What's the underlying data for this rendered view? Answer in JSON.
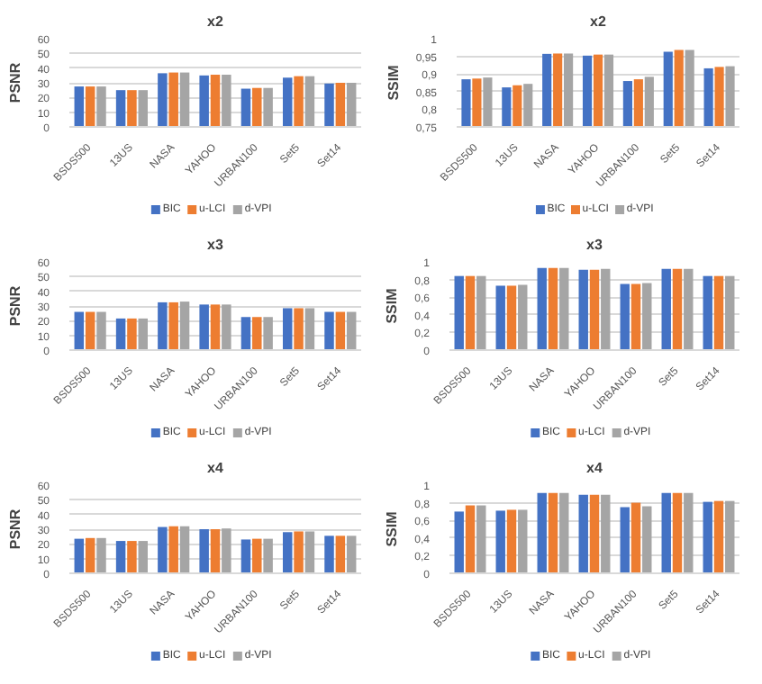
{
  "chart_data": [
    {
      "type": "bar",
      "title": "x2",
      "ylabel": "PSNR",
      "categories": [
        "BSDS500",
        "13US",
        "NASA",
        "YAHOO",
        "URBAN100",
        "Set5",
        "Set14"
      ],
      "ylim": [
        0,
        60
      ],
      "yticks": [
        0,
        10,
        20,
        30,
        40,
        50,
        60
      ],
      "grid": "y",
      "legend": "bottom",
      "series": [
        {
          "name": "BIC",
          "color": "#4472c4",
          "values": [
            27.5,
            25,
            36.5,
            35,
            26,
            33.5,
            29.5
          ]
        },
        {
          "name": "u-LCI",
          "color": "#ed7d31",
          "values": [
            27.5,
            25,
            37,
            35.5,
            26.5,
            34.5,
            30
          ]
        },
        {
          "name": "d-VPI",
          "color": "#a5a5a5",
          "values": [
            27.5,
            25,
            37,
            35.5,
            26.5,
            34.5,
            30
          ]
        }
      ]
    },
    {
      "type": "bar",
      "title": "x2",
      "ylabel": "SSIM",
      "categories": [
        "BSDS500",
        "13US",
        "NASA",
        "YAHOO",
        "URBAN100",
        "Set5",
        "Set14"
      ],
      "ylim": [
        0.75,
        1
      ],
      "yticks": [
        {
          "value": 0.75,
          "label": "0,75"
        },
        {
          "value": 0.8,
          "label": "0,8"
        },
        {
          "value": 0.85,
          "label": "0,85"
        },
        {
          "value": 0.9,
          "label": "0,9"
        },
        {
          "value": 0.95,
          "label": "0,95"
        },
        1
      ],
      "grid": "y",
      "legend": "bottom",
      "series": [
        {
          "name": "BIC",
          "color": "#4472c4",
          "values": [
            0.885,
            0.862,
            0.957,
            0.952,
            0.88,
            0.963,
            0.916
          ]
        },
        {
          "name": "u-LCI",
          "color": "#ed7d31",
          "values": [
            0.887,
            0.868,
            0.958,
            0.955,
            0.885,
            0.968,
            0.92
          ]
        },
        {
          "name": "d-VPI",
          "color": "#a5a5a5",
          "values": [
            0.89,
            0.872,
            0.958,
            0.955,
            0.892,
            0.968,
            0.922
          ]
        }
      ]
    },
    {
      "type": "bar",
      "title": "x3",
      "ylabel": "PSNR",
      "categories": [
        "BSDS500",
        "13US",
        "NASA",
        "YAHOO",
        "URBAN100",
        "Set5",
        "Set14"
      ],
      "ylim": [
        0,
        60
      ],
      "yticks": [
        0,
        10,
        20,
        30,
        40,
        50,
        60
      ],
      "grid": "y",
      "legend": "bottom",
      "series": [
        {
          "name": "BIC",
          "color": "#4472c4",
          "values": [
            26,
            21.5,
            32.5,
            31,
            22.5,
            28.5,
            26
          ]
        },
        {
          "name": "u-LCI",
          "color": "#ed7d31",
          "values": [
            26,
            21.5,
            32.5,
            31,
            22.5,
            28.5,
            26
          ]
        },
        {
          "name": "d-VPI",
          "color": "#a5a5a5",
          "values": [
            26,
            21.5,
            33,
            31,
            22.5,
            28.5,
            26
          ]
        }
      ]
    },
    {
      "type": "bar",
      "title": "x3",
      "ylabel": "SSIM",
      "categories": [
        "BSDS500",
        "13US",
        "NASA",
        "YAHOO",
        "URBAN100",
        "Set5",
        "Set14"
      ],
      "ylim": [
        0,
        1
      ],
      "yticks": [
        0,
        {
          "value": 0.2,
          "label": "0,2"
        },
        {
          "value": 0.4,
          "label": "0,4"
        },
        {
          "value": 0.6,
          "label": "0,6"
        },
        {
          "value": 0.8,
          "label": "0,8"
        },
        1
      ],
      "grid": "y",
      "legend": "bottom",
      "series": [
        {
          "name": "BIC",
          "color": "#4472c4",
          "values": [
            0.84,
            0.73,
            0.93,
            0.91,
            0.75,
            0.92,
            0.84
          ]
        },
        {
          "name": "u-LCI",
          "color": "#ed7d31",
          "values": [
            0.84,
            0.73,
            0.93,
            0.91,
            0.75,
            0.92,
            0.84
          ]
        },
        {
          "name": "d-VPI",
          "color": "#a5a5a5",
          "values": [
            0.84,
            0.74,
            0.93,
            0.92,
            0.76,
            0.92,
            0.84
          ]
        }
      ]
    },
    {
      "type": "bar",
      "title": "x4",
      "ylabel": "PSNR",
      "categories": [
        "BSDS500",
        "13US",
        "NASA",
        "YAHOO",
        "URBAN100",
        "Set5",
        "Set14"
      ],
      "ylim": [
        0,
        60
      ],
      "yticks": [
        0,
        10,
        20,
        30,
        40,
        50,
        60
      ],
      "grid": "y",
      "legend": "bottom",
      "series": [
        {
          "name": "BIC",
          "color": "#4472c4",
          "values": [
            23.5,
            22,
            31.5,
            30,
            23,
            28,
            25.5
          ]
        },
        {
          "name": "u-LCI",
          "color": "#ed7d31",
          "values": [
            24,
            22,
            32,
            30,
            23.5,
            28.5,
            25.5
          ]
        },
        {
          "name": "d-VPI",
          "color": "#a5a5a5",
          "values": [
            24,
            22,
            32,
            30.5,
            23.5,
            28.5,
            25.5
          ]
        }
      ]
    },
    {
      "type": "bar",
      "title": "x4",
      "ylabel": "SSIM",
      "categories": [
        "BSDS500",
        "13US",
        "NASA",
        "YAHOO",
        "URBAN100",
        "Set5",
        "Set14"
      ],
      "ylim": [
        0,
        1
      ],
      "yticks": [
        0,
        {
          "value": 0.2,
          "label": "0,2"
        },
        {
          "value": 0.4,
          "label": "0,4"
        },
        {
          "value": 0.6,
          "label": "0,6"
        },
        {
          "value": 0.8,
          "label": "0,8"
        },
        1
      ],
      "grid": "y",
      "legend": "bottom",
      "series": [
        {
          "name": "BIC",
          "color": "#4472c4",
          "values": [
            0.7,
            0.71,
            0.91,
            0.89,
            0.75,
            0.91,
            0.81
          ]
        },
        {
          "name": "u-LCI",
          "color": "#ed7d31",
          "values": [
            0.77,
            0.72,
            0.91,
            0.89,
            0.8,
            0.91,
            0.82
          ]
        },
        {
          "name": "d-VPI",
          "color": "#a5a5a5",
          "values": [
            0.77,
            0.72,
            0.91,
            0.89,
            0.76,
            0.91,
            0.82
          ]
        }
      ]
    }
  ]
}
